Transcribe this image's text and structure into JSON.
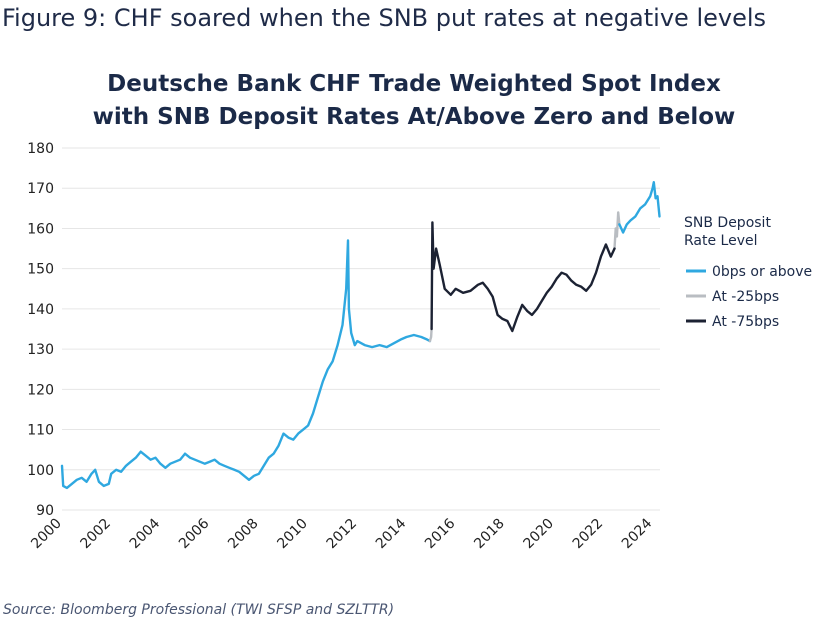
{
  "figure": {
    "heading": "Figure 9: CHF soared when the SNB put rates at negative levels",
    "source": "Source: Bloomberg Professional (TWI SFSP and SZLTTR)"
  },
  "chart_data": {
    "type": "line",
    "title_line1": "Deutsche Bank CHF Trade Weighted Spot Index",
    "title_line2": "with SNB Deposit Rates At/Above Zero and Below",
    "xlabel": "",
    "ylabel": "",
    "ylim": [
      90,
      180
    ],
    "xlim": [
      2000,
      2024.3
    ],
    "yticks": [
      90,
      100,
      110,
      120,
      130,
      140,
      150,
      160,
      170,
      180
    ],
    "xticks": [
      "2000",
      "2002",
      "2004",
      "2006",
      "2008",
      "2010",
      "2012",
      "2014",
      "2016",
      "2018",
      "2020",
      "2022",
      "2024"
    ],
    "grid": "horizontal",
    "legend": {
      "title_line1": "SNB Deposit",
      "title_line2": "Rate Level",
      "placement": "right"
    },
    "series": [
      {
        "name": "0bps or above",
        "color": "#2fa8e0",
        "points": [
          [
            2000.0,
            101
          ],
          [
            2000.05,
            96
          ],
          [
            2000.2,
            95.5
          ],
          [
            2000.4,
            96.5
          ],
          [
            2000.6,
            97.5
          ],
          [
            2000.8,
            98
          ],
          [
            2001.0,
            97
          ],
          [
            2001.2,
            99
          ],
          [
            2001.35,
            100
          ],
          [
            2001.5,
            97
          ],
          [
            2001.7,
            96
          ],
          [
            2001.9,
            96.5
          ],
          [
            2002.0,
            99
          ],
          [
            2002.2,
            100
          ],
          [
            2002.4,
            99.5
          ],
          [
            2002.6,
            101
          ],
          [
            2002.8,
            102
          ],
          [
            2003.0,
            103
          ],
          [
            2003.2,
            104.5
          ],
          [
            2003.4,
            103.5
          ],
          [
            2003.6,
            102.5
          ],
          [
            2003.8,
            103
          ],
          [
            2004.0,
            101.5
          ],
          [
            2004.2,
            100.5
          ],
          [
            2004.4,
            101.5
          ],
          [
            2004.6,
            102
          ],
          [
            2004.8,
            102.5
          ],
          [
            2005.0,
            104
          ],
          [
            2005.2,
            103
          ],
          [
            2005.4,
            102.5
          ],
          [
            2005.6,
            102
          ],
          [
            2005.8,
            101.5
          ],
          [
            2006.0,
            102
          ],
          [
            2006.2,
            102.5
          ],
          [
            2006.4,
            101.5
          ],
          [
            2006.6,
            101
          ],
          [
            2006.8,
            100.5
          ],
          [
            2007.0,
            100
          ],
          [
            2007.2,
            99.5
          ],
          [
            2007.4,
            98.5
          ],
          [
            2007.6,
            97.5
          ],
          [
            2007.8,
            98.5
          ],
          [
            2008.0,
            99
          ],
          [
            2008.2,
            101
          ],
          [
            2008.4,
            103
          ],
          [
            2008.6,
            104
          ],
          [
            2008.8,
            106
          ],
          [
            2009.0,
            109
          ],
          [
            2009.2,
            108
          ],
          [
            2009.4,
            107.5
          ],
          [
            2009.6,
            109
          ],
          [
            2009.8,
            110
          ],
          [
            2010.0,
            111
          ],
          [
            2010.2,
            114
          ],
          [
            2010.4,
            118
          ],
          [
            2010.6,
            122
          ],
          [
            2010.8,
            125
          ],
          [
            2011.0,
            127
          ],
          [
            2011.2,
            131
          ],
          [
            2011.4,
            136
          ],
          [
            2011.55,
            145
          ],
          [
            2011.62,
            157
          ],
          [
            2011.66,
            140
          ],
          [
            2011.75,
            134
          ],
          [
            2011.9,
            131
          ],
          [
            2012.0,
            132
          ],
          [
            2012.3,
            131
          ],
          [
            2012.6,
            130.5
          ],
          [
            2012.9,
            131
          ],
          [
            2013.2,
            130.5
          ],
          [
            2013.5,
            131.5
          ],
          [
            2013.8,
            132.5
          ],
          [
            2014.0,
            133
          ],
          [
            2014.3,
            133.5
          ],
          [
            2014.6,
            133
          ],
          [
            2014.8,
            132.5
          ],
          [
            2014.95,
            132
          ]
        ]
      },
      {
        "name": "At -25bps",
        "color": "#b9bdc2",
        "segments": [
          [
            [
              2014.95,
              132
            ],
            [
              2015.0,
              133
            ],
            [
              2015.02,
              135
            ]
          ],
          [
            [
              2022.45,
              155
            ],
            [
              2022.5,
              160
            ],
            [
              2022.55,
              158
            ],
            [
              2022.6,
              164
            ],
            [
              2022.65,
              161
            ]
          ]
        ]
      },
      {
        "name": "At -75bps",
        "color": "#1c2233",
        "points": [
          [
            2015.02,
            135
          ],
          [
            2015.05,
            161.5
          ],
          [
            2015.1,
            150
          ],
          [
            2015.2,
            155
          ],
          [
            2015.35,
            151
          ],
          [
            2015.55,
            145
          ],
          [
            2015.8,
            143.5
          ],
          [
            2016.0,
            145
          ],
          [
            2016.3,
            144
          ],
          [
            2016.6,
            144.5
          ],
          [
            2016.9,
            146
          ],
          [
            2017.1,
            146.5
          ],
          [
            2017.3,
            145
          ],
          [
            2017.5,
            143
          ],
          [
            2017.7,
            138.5
          ],
          [
            2017.9,
            137.5
          ],
          [
            2018.1,
            137
          ],
          [
            2018.3,
            134.5
          ],
          [
            2018.5,
            138
          ],
          [
            2018.7,
            141
          ],
          [
            2018.9,
            139.5
          ],
          [
            2019.1,
            138.5
          ],
          [
            2019.3,
            140
          ],
          [
            2019.5,
            142
          ],
          [
            2019.7,
            144
          ],
          [
            2019.9,
            145.5
          ],
          [
            2020.1,
            147.5
          ],
          [
            2020.3,
            149
          ],
          [
            2020.5,
            148.5
          ],
          [
            2020.7,
            147
          ],
          [
            2020.9,
            146
          ],
          [
            2021.1,
            145.5
          ],
          [
            2021.3,
            144.5
          ],
          [
            2021.5,
            146
          ],
          [
            2021.7,
            149
          ],
          [
            2021.9,
            153
          ],
          [
            2022.1,
            156
          ],
          [
            2022.3,
            153
          ],
          [
            2022.45,
            155
          ]
        ]
      },
      {
        "name": "0bps or above (2022+)",
        "color": "#2fa8e0",
        "legend": false,
        "points": [
          [
            2022.65,
            161
          ],
          [
            2022.8,
            159
          ],
          [
            2022.95,
            161
          ],
          [
            2023.1,
            162
          ],
          [
            2023.3,
            163
          ],
          [
            2023.5,
            165
          ],
          [
            2023.7,
            166
          ],
          [
            2023.9,
            168
          ],
          [
            2024.0,
            170
          ],
          [
            2024.05,
            171.5
          ],
          [
            2024.12,
            167.5
          ],
          [
            2024.2,
            168
          ],
          [
            2024.28,
            163
          ]
        ]
      }
    ]
  }
}
